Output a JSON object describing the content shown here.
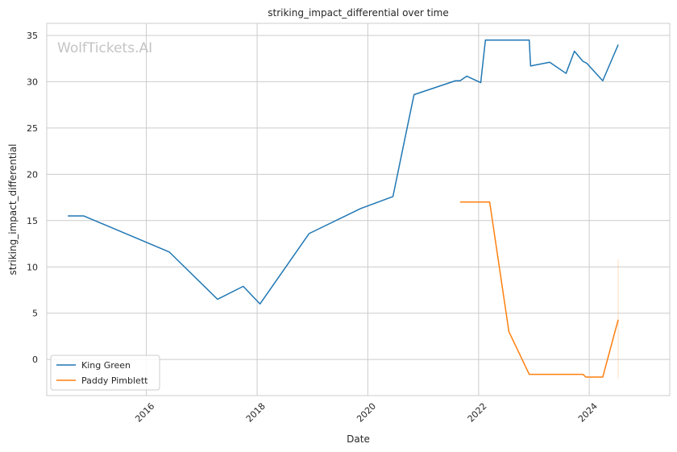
{
  "chart_data": {
    "type": "line",
    "title": "striking_impact_differential over time",
    "xlabel": "Date",
    "ylabel": "striking_impact_differential",
    "watermark": "WolfTickets.AI",
    "xlim": [
      "2014-03-15",
      "2025-06-15"
    ],
    "ylim": [
      -3.9,
      36.3
    ],
    "x_ticks": [
      "2016",
      "2018",
      "2020",
      "2022",
      "2024"
    ],
    "y_ticks": [
      0,
      5,
      10,
      15,
      20,
      25,
      30,
      35
    ],
    "grid": true,
    "legend_position": "lower-left",
    "series": [
      {
        "name": "King Green",
        "color": "#1f77b4",
        "points": [
          [
            "2014-08-01",
            15.5
          ],
          [
            "2014-11-15",
            15.5
          ],
          [
            "2016-06-01",
            11.6
          ],
          [
            "2017-04-15",
            6.5
          ],
          [
            "2017-10-01",
            7.9
          ],
          [
            "2018-01-20",
            6.0
          ],
          [
            "2018-12-10",
            13.6
          ],
          [
            "2019-11-15",
            16.3
          ],
          [
            "2020-06-15",
            17.6
          ],
          [
            "2020-09-20",
            25.3
          ],
          [
            "2020-11-01",
            28.6
          ],
          [
            "2021-08-01",
            30.1
          ],
          [
            "2021-09-01",
            30.1
          ],
          [
            "2021-10-15",
            30.6
          ],
          [
            "2022-01-15",
            29.9
          ],
          [
            "2022-02-15",
            34.5
          ],
          [
            "2022-12-01",
            34.5
          ],
          [
            "2022-12-10",
            31.7
          ],
          [
            "2023-04-15",
            32.1
          ],
          [
            "2023-08-01",
            30.9
          ],
          [
            "2023-09-25",
            33.3
          ],
          [
            "2023-11-20",
            32.2
          ],
          [
            "2023-12-15",
            32.0
          ],
          [
            "2024-03-30",
            30.1
          ],
          [
            "2024-07-10",
            34.0
          ]
        ]
      },
      {
        "name": "Paddy Pimblett",
        "color": "#ff7f0e",
        "points": [
          [
            "2021-09-01",
            17.0
          ],
          [
            "2022-03-15",
            17.0
          ],
          [
            "2022-07-20",
            3.0
          ],
          [
            "2022-12-01",
            -1.6
          ],
          [
            "2023-11-20",
            -1.6
          ],
          [
            "2023-12-10",
            -1.9
          ],
          [
            "2024-03-30",
            -1.9
          ],
          [
            "2024-07-10",
            4.3
          ]
        ],
        "uncertainty_band": {
          "x": "2024-07-10",
          "low": -2.1,
          "high": 10.8
        }
      }
    ]
  }
}
